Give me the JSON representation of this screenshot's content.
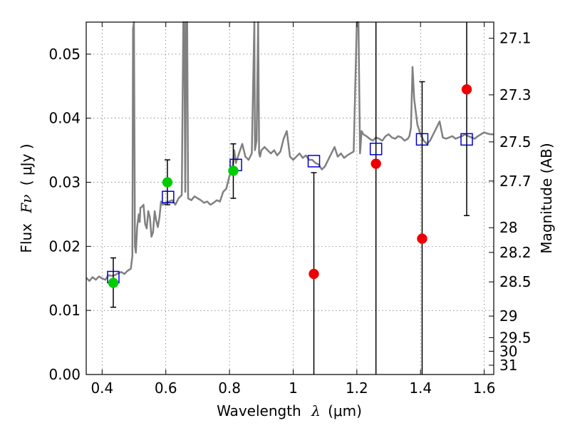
{
  "chart_data": {
    "type": "scatter",
    "xlabel_text": "Wavelength",
    "xlabel_symbol": "λ",
    "xlabel_unit": "(μm)",
    "ylabel_text": "Flux",
    "ylabel_symbol": "Fν",
    "ylabel_unit": "( μJy )",
    "y2label": "Magnitude (AB)",
    "xlim": [
      0.35,
      1.63
    ],
    "ylim": [
      0.0,
      0.055
    ],
    "grid": true,
    "x_ticks": [
      {
        "value": 0.4,
        "label": "0.4"
      },
      {
        "value": 0.6,
        "label": "0.6"
      },
      {
        "value": 0.8,
        "label": "0.8"
      },
      {
        "value": 1.0,
        "label": "1"
      },
      {
        "value": 1.2,
        "label": "1.2"
      },
      {
        "value": 1.4,
        "label": "1.4"
      },
      {
        "value": 1.6,
        "label": "1.6"
      }
    ],
    "y_ticks": [
      {
        "value": 0.0,
        "label": "0.00"
      },
      {
        "value": 0.01,
        "label": "0.01"
      },
      {
        "value": 0.02,
        "label": "0.02"
      },
      {
        "value": 0.03,
        "label": "0.03"
      },
      {
        "value": 0.04,
        "label": "0.04"
      },
      {
        "value": 0.05,
        "label": "0.05"
      }
    ],
    "mag_ticks": [
      {
        "mag": 27.1,
        "label": "27.1"
      },
      {
        "mag": 27.3,
        "label": "27.3"
      },
      {
        "mag": 27.5,
        "label": "27.5"
      },
      {
        "mag": 27.7,
        "label": "27.7"
      },
      {
        "mag": 28.0,
        "label": "28"
      },
      {
        "mag": 28.2,
        "label": "28.2"
      },
      {
        "mag": 28.5,
        "label": "28.5"
      },
      {
        "mag": 29.0,
        "label": "29"
      },
      {
        "mag": 29.5,
        "label": "29.5"
      },
      {
        "mag": 30.0,
        "label": "30"
      },
      {
        "mag": 31.0,
        "label": "31"
      }
    ],
    "series": [
      {
        "kind": "line",
        "color": "#808080",
        "x": [
          0.35,
          0.36,
          0.37,
          0.38,
          0.39,
          0.4,
          0.41,
          0.42,
          0.43,
          0.44,
          0.45,
          0.46,
          0.47,
          0.48,
          0.49,
          0.495,
          0.497,
          0.5,
          0.503,
          0.506,
          0.51,
          0.515,
          0.518,
          0.52,
          0.525,
          0.53,
          0.535,
          0.54,
          0.545,
          0.55,
          0.555,
          0.56,
          0.565,
          0.57,
          0.575,
          0.58,
          0.585,
          0.59,
          0.6,
          0.61,
          0.62,
          0.63,
          0.64,
          0.65,
          0.655,
          0.658,
          0.661,
          0.664,
          0.667,
          0.67,
          0.68,
          0.69,
          0.7,
          0.71,
          0.72,
          0.73,
          0.74,
          0.75,
          0.76,
          0.77,
          0.78,
          0.79,
          0.8,
          0.81,
          0.815,
          0.82,
          0.83,
          0.84,
          0.85,
          0.86,
          0.87,
          0.878,
          0.88,
          0.885,
          0.89,
          0.893,
          0.896,
          0.9,
          0.91,
          0.92,
          0.93,
          0.94,
          0.95,
          0.96,
          0.97,
          0.98,
          0.99,
          1.0,
          1.01,
          1.02,
          1.03,
          1.04,
          1.05,
          1.06,
          1.07,
          1.08,
          1.09,
          1.1,
          1.11,
          1.12,
          1.13,
          1.14,
          1.15,
          1.16,
          1.17,
          1.18,
          1.19,
          1.2,
          1.205,
          1.21,
          1.215,
          1.22,
          1.23,
          1.24,
          1.25,
          1.26,
          1.27,
          1.28,
          1.29,
          1.3,
          1.31,
          1.32,
          1.33,
          1.34,
          1.35,
          1.36,
          1.365,
          1.37,
          1.375,
          1.38,
          1.39,
          1.4,
          1.41,
          1.42,
          1.43,
          1.44,
          1.45,
          1.46,
          1.47,
          1.48,
          1.49,
          1.5,
          1.51,
          1.52,
          1.53,
          1.54,
          1.55,
          1.56,
          1.57,
          1.58,
          1.59,
          1.6,
          1.61,
          1.62,
          1.63
        ],
        "y": [
          0.0151,
          0.0146,
          0.0152,
          0.0148,
          0.0153,
          0.015,
          0.0148,
          0.0155,
          0.0154,
          0.0155,
          0.0158,
          0.016,
          0.0157,
          0.0162,
          0.0165,
          0.0185,
          0.054,
          0.055,
          0.02,
          0.019,
          0.023,
          0.025,
          0.0238,
          0.026,
          0.0262,
          0.0265,
          0.0235,
          0.0228,
          0.0255,
          0.0245,
          0.0215,
          0.0222,
          0.0255,
          0.024,
          0.023,
          0.0245,
          0.027,
          0.0265,
          0.0268,
          0.027,
          0.0272,
          0.0265,
          0.0275,
          0.028,
          0.055,
          0.055,
          0.0285,
          0.056,
          0.0555,
          0.0275,
          0.0272,
          0.0278,
          0.0275,
          0.0272,
          0.0268,
          0.027,
          0.0265,
          0.0268,
          0.0272,
          0.027,
          0.0285,
          0.029,
          0.031,
          0.0325,
          0.035,
          0.033,
          0.0345,
          0.036,
          0.034,
          0.0335,
          0.0345,
          0.055,
          0.035,
          0.0365,
          0.055,
          0.0345,
          0.034,
          0.035,
          0.0355,
          0.035,
          0.0345,
          0.035,
          0.0342,
          0.0348,
          0.0368,
          0.038,
          0.034,
          0.0335,
          0.034,
          0.0345,
          0.0338,
          0.0342,
          0.0335,
          0.0335,
          0.033,
          0.0328,
          0.032,
          0.0325,
          0.0335,
          0.0345,
          0.0355,
          0.034,
          0.0345,
          0.0338,
          0.0342,
          0.0345,
          0.0348,
          0.055,
          0.055,
          0.0345,
          0.038,
          0.0375,
          0.0372,
          0.0368,
          0.0365,
          0.037,
          0.0368,
          0.0365,
          0.0372,
          0.0375,
          0.037,
          0.0368,
          0.0372,
          0.037,
          0.0365,
          0.0368,
          0.0372,
          0.0385,
          0.048,
          0.043,
          0.039,
          0.0375,
          0.0365,
          0.036,
          0.0365,
          0.0375,
          0.0385,
          0.0395,
          0.037,
          0.0368,
          0.037,
          0.0372,
          0.0368,
          0.037,
          0.0372,
          0.0375,
          0.0372,
          0.037,
          0.0368,
          0.0372,
          0.0375,
          0.0378,
          0.0376,
          0.0375,
          0.0375
        ]
      },
      {
        "kind": "squares",
        "color": "#0000cc",
        "x": [
          0.435,
          0.607,
          0.82,
          1.065,
          1.26,
          1.405,
          1.545
        ],
        "y": [
          0.0152,
          0.0277,
          0.0327,
          0.0333,
          0.0352,
          0.0367,
          0.0367
        ]
      },
      {
        "kind": "points",
        "color": "#00cc00",
        "x": [
          0.435,
          0.605,
          0.812
        ],
        "y": [
          0.0143,
          0.03,
          0.0318
        ],
        "yerr_low": [
          0.0105,
          0.0265,
          0.0275
        ],
        "yerr_high": [
          0.0182,
          0.0335,
          0.036
        ]
      },
      {
        "kind": "points",
        "color": "#ee0000",
        "x": [
          1.065,
          1.26,
          1.405,
          1.545
        ],
        "y": [
          0.0157,
          0.0329,
          0.0212,
          0.0445
        ],
        "yerr_low": [
          0.0,
          0.0,
          0.0,
          0.0248
        ],
        "yerr_high": [
          0.0315,
          0.055,
          0.0457,
          0.055
        ]
      }
    ]
  }
}
